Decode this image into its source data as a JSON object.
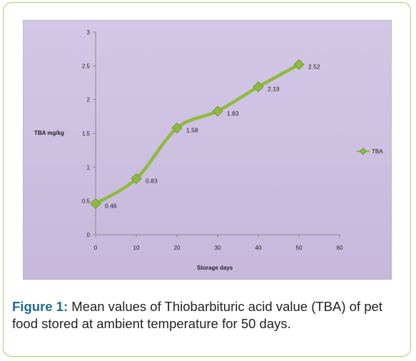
{
  "figure": {
    "label": "Figure 1:",
    "caption": " Mean values of Thiobarbituric acid value (TBA) of pet food stored at ambient temperature for 50 days."
  },
  "colors": {
    "frame_border": "#a9cf6e",
    "plot_background": "#cdbfe0",
    "line": "#8fba3e",
    "marker": "#8fba3e",
    "caption_label": "#1f6a8f"
  },
  "chart_data": {
    "type": "line",
    "title": "",
    "xlabel": "Storage days",
    "ylabel": "TBA mg/kg",
    "xlim": [
      0,
      60
    ],
    "ylim": [
      0,
      3
    ],
    "xticks": [
      0,
      10,
      20,
      30,
      40,
      50,
      60
    ],
    "yticks": [
      0,
      0.5,
      1,
      1.5,
      2,
      2.5,
      3
    ],
    "x_tick_labels": [
      "0",
      "10",
      "20",
      "30",
      "40",
      "50",
      "60"
    ],
    "y_tick_labels": [
      "0",
      "0.5",
      "1",
      "1.5",
      "2",
      "2.5",
      "3"
    ],
    "grid": false,
    "smooth": true,
    "legend_position": "right",
    "series": [
      {
        "name": "TBA",
        "marker": "diamond",
        "x": [
          0,
          10,
          20,
          30,
          40,
          50
        ],
        "y": [
          0.46,
          0.83,
          1.58,
          1.83,
          2.19,
          2.52
        ],
        "labels": [
          "0.46",
          "0.83",
          "1.58",
          "1.83",
          "2.19",
          "2.52"
        ]
      }
    ]
  }
}
